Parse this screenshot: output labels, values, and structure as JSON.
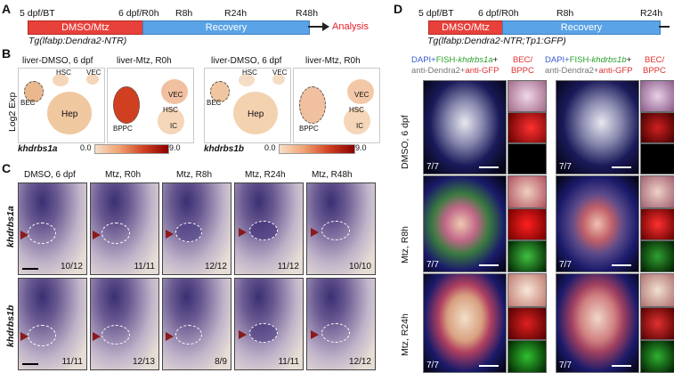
{
  "panels": {
    "a": "A",
    "b": "B",
    "c": "C",
    "d": "D"
  },
  "timeline_a": {
    "t0": "5 dpf/BT",
    "t1": "6 dpf/R0h",
    "t2": "R8h",
    "t3": "R24h",
    "t4": "R48h",
    "treat": "DMSO/Mtz",
    "recovery": "Recovery",
    "analysis": "Analysis",
    "genotype": "Tg(lfabp:Dendra2-NTR)"
  },
  "timeline_d": {
    "t0": "5 dpf/BT",
    "t1": "6 dpf/R0h",
    "t2": "R8h",
    "t3": "R24h",
    "treat": "DMSO/Mtz",
    "recovery": "Recovery",
    "genotype": "Tg(lfabp:Dendra2-NTR;Tp1:GFP)"
  },
  "umap": {
    "ylabel": "Log2 Exp",
    "titles": [
      "liver-DMSO, 6 dpf",
      "liver-Mtz, R0h",
      "liver-DMSO, 6 dpf",
      "liver-Mtz, R0h"
    ],
    "clusters": {
      "hsc": "HSC",
      "vec": "VEC",
      "bec": "BEC",
      "hep": "Hep",
      "bppc": "BPPC",
      "ic": "IC"
    },
    "genes": [
      "khdrbs1a",
      "khdrbs1b"
    ],
    "scale_min": "0.0",
    "scale_max": "9.0"
  },
  "ish": {
    "cols": [
      "DMSO, 6 dpf",
      "Mtz, R0h",
      "Mtz, R8h",
      "Mtz, R24h",
      "Mtz, R48h"
    ],
    "rows": [
      "khdrbs1a",
      "khdrbs1b"
    ],
    "counts_a": [
      "10/12",
      "11/11",
      "12/12",
      "11/12",
      "10/10"
    ],
    "counts_b": [
      "11/11",
      "12/13",
      "8/9",
      "11/11",
      "12/12"
    ]
  },
  "fluor": {
    "header_left_1": "DAPI+",
    "header_left_2": "FISH-",
    "header_left_gene": "khdrbs1a",
    "header_left_3": "+",
    "header_right_gene": "khdrbs1b",
    "header_line2a": "anti-Dendra2+",
    "header_line2b": "anti-GFP",
    "bec_label": "BEC/",
    "bppc_label": "BPPC",
    "rows": [
      "DMSO, 6 dpf",
      "Mtz, R8h",
      "Mtz, R24h"
    ],
    "counts": [
      "7/7",
      "7/7",
      "7/7"
    ]
  },
  "colors": {
    "red": "#e8403a",
    "blue": "#5aa3e6",
    "analysis": "#e8202a",
    "arrow": "#8b1a1a"
  }
}
